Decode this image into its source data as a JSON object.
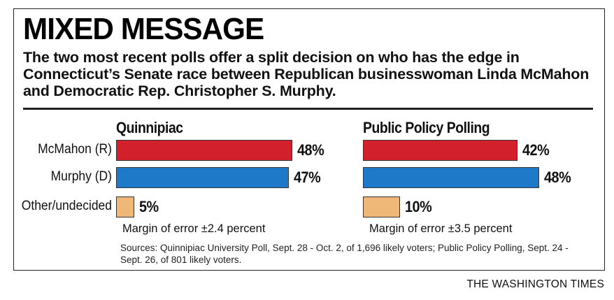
{
  "title": "MIXED MESSAGE",
  "subtitle": "The two most recent polls offer a split decision on who has the edge in Connecticut’s Senate race between Republican businesswoman Linda McMahon and Democratic Rep. Christopher S. Murphy.",
  "chart_data": {
    "type": "bar",
    "orientation": "horizontal",
    "unit": "%",
    "categories": [
      "McMahon (R)",
      "Murphy (D)",
      "Other/undecided"
    ],
    "colors": [
      "#d2202c",
      "#1e7ac8",
      "#f0b878"
    ],
    "panels": [
      {
        "title": "Quinnipiac",
        "values": [
          48,
          47,
          5
        ],
        "labels": [
          "48%",
          "47%",
          "5%"
        ],
        "margin_of_error": "Margin of error ±2.4 percent"
      },
      {
        "title": "Public Policy Polling",
        "values": [
          42,
          48,
          10
        ],
        "labels": [
          "42%",
          "48%",
          "10%"
        ],
        "margin_of_error": "Margin of error ±3.5 percent"
      }
    ],
    "xlim": [
      0,
      48
    ]
  },
  "sources": "Sources: Quinnipiac University Poll, Sept. 28 - Oct. 2, of 1,696 likely voters; Public Policy Polling, Sept. 24 - Sept. 26, of 801 likely voters.",
  "credit": "THE WASHINGTON TIMES"
}
